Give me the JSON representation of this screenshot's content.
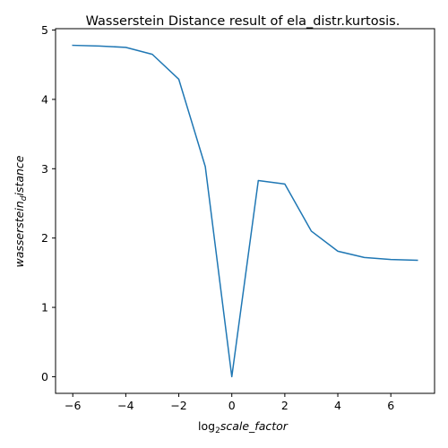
{
  "chart_data": {
    "type": "line",
    "title": "Wasserstein Distance result of ela_distr.kurtosis.",
    "xlabel": {
      "prefix": "log",
      "sub": "2",
      "suffix": "scale_factor"
    },
    "ylabel": {
      "prefix": "wasserstein",
      "sub": "d",
      "suffix": "istance"
    },
    "xlim": [
      -6.65,
      7.65
    ],
    "ylim": [
      -0.24,
      5.02
    ],
    "xticks": [
      -6,
      -4,
      -2,
      0,
      2,
      4,
      6
    ],
    "yticks": [
      0,
      1,
      2,
      3,
      4,
      5
    ],
    "xtick_labels": [
      "−6",
      "−4",
      "−2",
      "0",
      "2",
      "4",
      "6"
    ],
    "ytick_labels": [
      "0",
      "1",
      "2",
      "3",
      "4",
      "5"
    ],
    "grid": false,
    "series": [
      {
        "color": "#1f77b4",
        "x": [
          -6,
          -5,
          -4,
          -3,
          -2,
          -1,
          0,
          1,
          2,
          3,
          4,
          5,
          6,
          7
        ],
        "y": [
          4.78,
          4.77,
          4.75,
          4.65,
          4.29,
          3.03,
          0.0,
          2.83,
          2.78,
          2.1,
          1.81,
          1.72,
          1.69,
          1.68
        ]
      }
    ]
  }
}
